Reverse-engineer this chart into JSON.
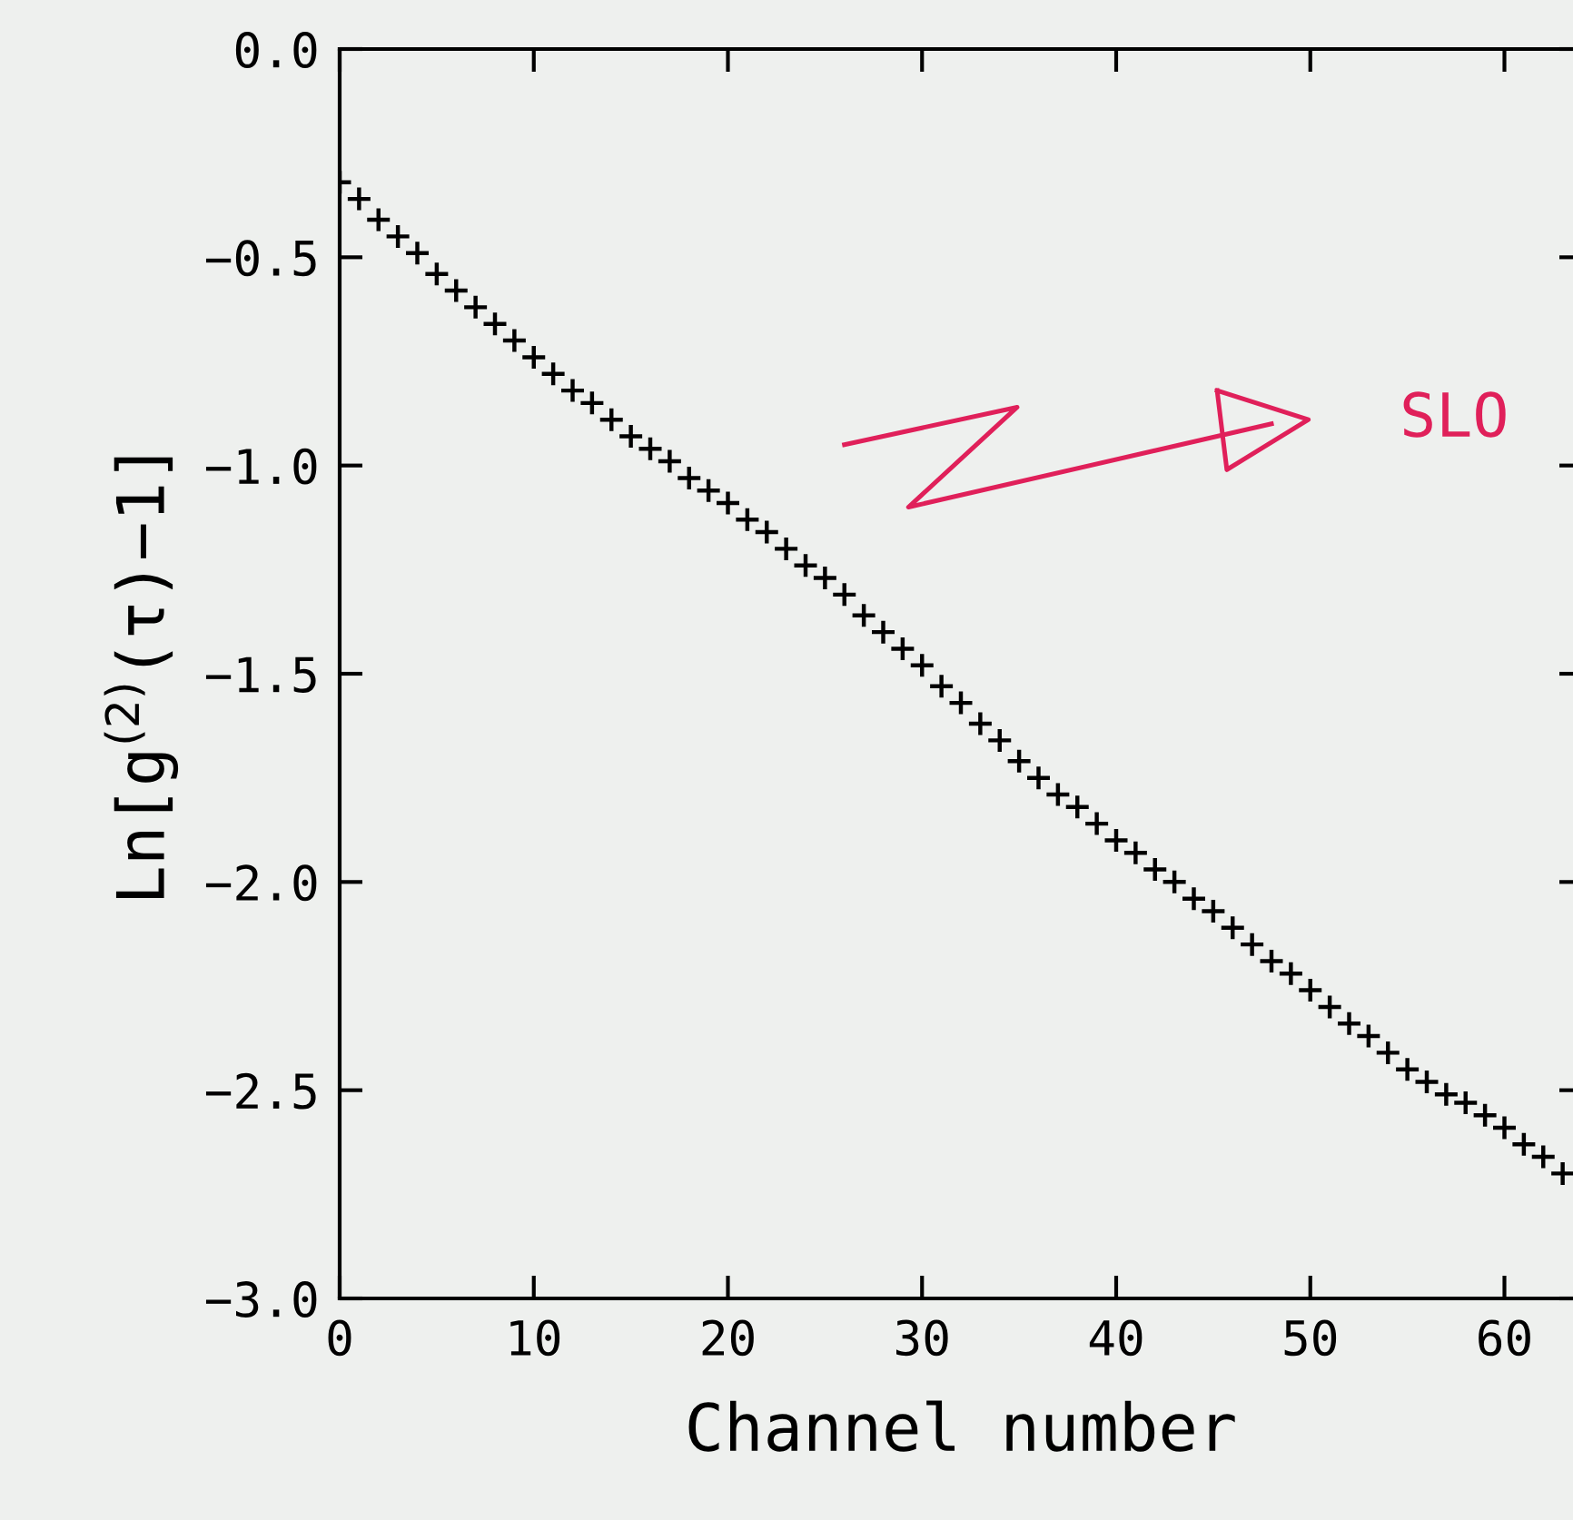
{
  "chart_data": {
    "type": "scatter",
    "xlabel": "Channel number",
    "ylabel": "Ln[g$^{(2)}$(τ)−1]",
    "x": [
      0,
      1,
      2,
      3,
      4,
      5,
      6,
      7,
      8,
      9,
      10,
      11,
      12,
      13,
      14,
      15,
      16,
      17,
      18,
      19,
      20,
      21,
      22,
      23,
      24,
      25,
      26,
      27,
      28,
      29,
      30,
      31,
      32,
      33,
      34,
      35,
      36,
      37,
      38,
      39,
      40,
      41,
      42,
      43,
      44,
      45,
      46,
      47,
      48,
      49,
      50,
      51,
      52,
      53,
      54,
      55,
      56,
      57,
      58,
      59,
      60,
      61,
      62,
      63
    ],
    "series": [
      {
        "color": "#000000",
        "values": [
          -0.32,
          -0.36,
          -0.41,
          -0.45,
          -0.49,
          -0.54,
          -0.58,
          -0.62,
          -0.66,
          -0.7,
          -0.74,
          -0.78,
          -0.82,
          -0.85,
          -0.89,
          -0.93,
          -0.96,
          -0.99,
          -1.03,
          -1.06,
          -1.09,
          -1.13,
          -1.16,
          -1.2,
          -1.24,
          -1.27,
          -1.31,
          -1.36,
          -1.4,
          -1.44,
          -1.48,
          -1.53,
          -1.57,
          -1.62,
          -1.66,
          -1.71,
          -1.75,
          -1.79,
          -1.82,
          -1.86,
          -1.9,
          -1.93,
          -1.97,
          -2.0,
          -2.04,
          -2.07,
          -2.11,
          -2.15,
          -2.19,
          -2.22,
          -2.26,
          -2.3,
          -2.34,
          -2.37,
          -2.41,
          -2.45,
          -2.48,
          -2.51,
          -2.53,
          -2.56,
          -2.59,
          -2.63,
          -2.66,
          -2.7
        ]
      }
    ],
    "marker": "cross",
    "xlim": [
      0,
      64
    ],
    "ylim": [
      -3.0,
      0.0
    ],
    "xticks": [
      0,
      10,
      20,
      30,
      40,
      50,
      60
    ],
    "yticks": [
      {
        "value": 0.0,
        "label": "0.0"
      },
      {
        "value": -0.5,
        "label": "−0.5"
      },
      {
        "value": -1.0,
        "label": "−1.0"
      },
      {
        "value": -1.5,
        "label": "−1.5"
      },
      {
        "value": -2.0,
        "label": "−2.0"
      },
      {
        "value": -2.5,
        "label": "−2.5"
      },
      {
        "value": -3.0,
        "label": "−3.0"
      }
    ],
    "grid": false,
    "legend": false,
    "annotations": [
      "SLO"
    ]
  }
}
